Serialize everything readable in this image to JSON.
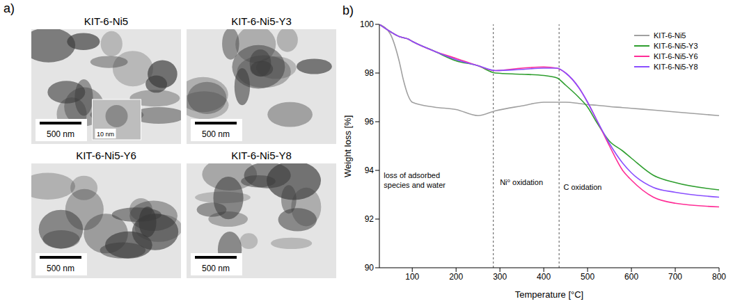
{
  "panel_a": {
    "panel_label": "a)",
    "images": [
      {
        "title": "KIT-6-Ni5",
        "scale_bar": "500 nm",
        "inset_scale_bar": "10 nm"
      },
      {
        "title": "KIT-6-Ni5-Y3",
        "scale_bar": "500 nm"
      },
      {
        "title": "KIT-6-Ni5-Y6",
        "scale_bar": "500 nm"
      },
      {
        "title": "KIT-6-Ni5-Y8",
        "scale_bar": "500 nm"
      }
    ]
  },
  "chart_data": {
    "type": "line",
    "panel_label": "b)",
    "x_label": "Temperature [°C]",
    "y_label": "Weight loss [%]",
    "x": [
      25,
      50,
      70,
      80,
      90,
      100,
      150,
      200,
      250,
      290,
      350,
      400,
      430,
      450,
      480,
      500,
      520,
      550,
      580,
      600,
      650,
      700,
      800
    ],
    "series": [
      {
        "name": "KIT-6-Ni5",
        "color": "#a0a0a0",
        "values": [
          100,
          99.6,
          98.5,
          97.7,
          97.1,
          96.8,
          96.6,
          96.5,
          96.25,
          96.45,
          96.65,
          96.8,
          96.8,
          96.8,
          96.75,
          96.7,
          96.68,
          96.62,
          96.58,
          96.55,
          96.48,
          96.4,
          96.25
        ]
      },
      {
        "name": "KIT-6-Ni5-Y3",
        "color": "#2e9e2e",
        "values": [
          100,
          99.7,
          99.5,
          99.45,
          99.4,
          99.3,
          98.9,
          98.5,
          98.3,
          98.0,
          97.95,
          97.9,
          97.8,
          97.5,
          97.0,
          96.6,
          96.0,
          95.2,
          94.8,
          94.5,
          93.8,
          93.5,
          93.2
        ]
      },
      {
        "name": "KIT-6-Ni5-Y6",
        "color": "#ff2d96",
        "values": [
          100,
          99.7,
          99.5,
          99.45,
          99.4,
          99.3,
          98.9,
          98.6,
          98.3,
          98.1,
          98.2,
          98.25,
          98.2,
          98.0,
          97.4,
          96.8,
          96.1,
          95.0,
          94.0,
          93.6,
          92.9,
          92.65,
          92.5
        ]
      },
      {
        "name": "KIT-6-Ni5-Y8",
        "color": "#8a4fff",
        "values": [
          100,
          99.7,
          99.5,
          99.45,
          99.4,
          99.3,
          98.9,
          98.55,
          98.3,
          98.1,
          98.15,
          98.2,
          98.2,
          98.0,
          97.4,
          96.8,
          96.1,
          95.1,
          94.3,
          93.9,
          93.3,
          93.1,
          92.9
        ]
      }
    ],
    "xlim": [
      25,
      800
    ],
    "xticks": [
      100,
      200,
      300,
      400,
      500,
      600,
      700,
      800
    ],
    "ylim": [
      90,
      100
    ],
    "yticks": [
      90,
      92,
      94,
      96,
      98,
      100
    ],
    "grid": false,
    "legend": "upper right",
    "vlines": [
      285,
      435
    ],
    "annotations": [
      {
        "text": "loss of adsorbed species and water",
        "x": 35,
        "y": 93.7
      },
      {
        "text": "Ni⁰ oxidation",
        "x": 300,
        "y": 93.4
      },
      {
        "text": "C oxidation",
        "x": 445,
        "y": 93.2
      }
    ]
  }
}
